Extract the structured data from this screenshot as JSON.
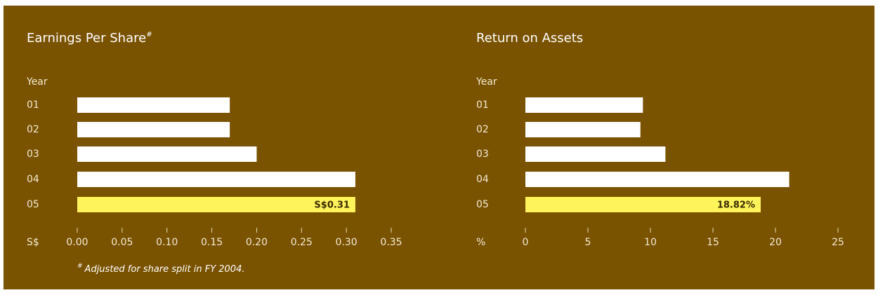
{
  "chart_data": [
    {
      "type": "bar",
      "orientation": "horizontal",
      "title": "Earnings Per Share",
      "title_mark": "#",
      "category_label": "Year",
      "x_label": "S$",
      "categories": [
        "01",
        "02",
        "03",
        "04",
        "05"
      ],
      "values": [
        0.17,
        0.17,
        0.2,
        0.31,
        0.31
      ],
      "value_labels": [
        null,
        null,
        null,
        null,
        "S$0.31"
      ],
      "colors": [
        "#ffffff",
        "#ffffff",
        "#ffffff",
        "#ffffff",
        "#fff35c"
      ],
      "xlim": [
        0,
        0.35
      ],
      "xticks": [
        {
          "value": 0,
          "label": "0.00"
        },
        {
          "value": 0.05,
          "label": "0.05"
        },
        {
          "value": 0.1,
          "label": "0.10"
        },
        {
          "value": 0.15,
          "label": "0.15"
        },
        {
          "value": 0.2,
          "label": "0.20"
        },
        {
          "value": 0.25,
          "label": "0.25"
        },
        {
          "value": 0.3,
          "label": "0.30"
        },
        {
          "value": 0.35,
          "label": "0.35"
        }
      ],
      "footnote_mark": "#",
      "footnote": "Adjusted for share split in FY 2004."
    },
    {
      "type": "bar",
      "orientation": "horizontal",
      "title": "Return on Assets",
      "category_label": "Year",
      "x_label": "%",
      "categories": [
        "01",
        "02",
        "03",
        "04",
        "05"
      ],
      "values": [
        9.4,
        9.2,
        11.2,
        21.1,
        18.82
      ],
      "value_labels": [
        null,
        null,
        null,
        null,
        "18.82%"
      ],
      "colors": [
        "#ffffff",
        "#ffffff",
        "#ffffff",
        "#ffffff",
        "#fff35c"
      ],
      "xlim": [
        0,
        25
      ],
      "xticks": [
        0,
        5,
        10,
        15,
        20,
        25
      ]
    }
  ]
}
